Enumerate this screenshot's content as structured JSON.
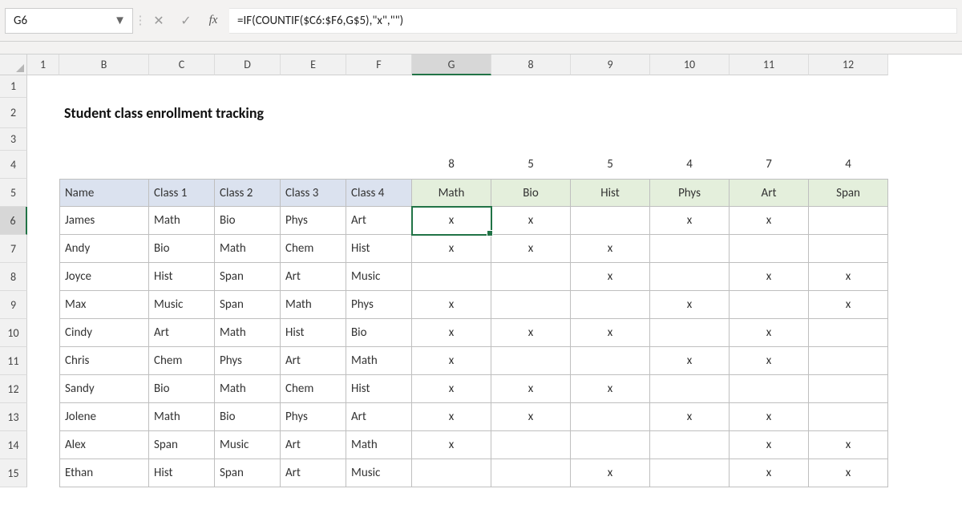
{
  "nameBox": "G6",
  "formula": "=IF(COUNTIF($C6:$F6,G$5),\"x\",\"\")",
  "columnHeaders": [
    "1",
    "B",
    "C",
    "D",
    "E",
    "F",
    "G",
    "8",
    "9",
    "10",
    "11",
    "12"
  ],
  "activeColIndex": 6,
  "rowHeaders": [
    "1",
    "2",
    "3",
    "4",
    "5",
    "6",
    "7",
    "8",
    "9",
    "10",
    "11",
    "12",
    "13",
    "14",
    "15"
  ],
  "activeRowIndex": 5,
  "title": "Student class enrollment tracking",
  "countsRow": [
    "",
    "",
    "",
    "",
    "",
    "8",
    "5",
    "5",
    "4",
    "7",
    "4"
  ],
  "headerRow": [
    "Name",
    "Class 1",
    "Class 2",
    "Class 3",
    "Class 4",
    "Math",
    "Bio",
    "Hist",
    "Phys",
    "Art",
    "Span"
  ],
  "dataRows": [
    [
      "James",
      "Math",
      "Bio",
      "Phys",
      "Art",
      "x",
      "x",
      "",
      "x",
      "x",
      ""
    ],
    [
      "Andy",
      "Bio",
      "Math",
      "Chem",
      "Hist",
      "x",
      "x",
      "x",
      "",
      "",
      ""
    ],
    [
      "Joyce",
      "Hist",
      "Span",
      "Art",
      "Music",
      "",
      "",
      "x",
      "",
      "x",
      "x"
    ],
    [
      "Max",
      "Music",
      "Span",
      "Math",
      "Phys",
      "x",
      "",
      "",
      "x",
      "",
      "x"
    ],
    [
      "Cindy",
      "Art",
      "Math",
      "Hist",
      "Bio",
      "x",
      "x",
      "x",
      "",
      "x",
      ""
    ],
    [
      "Chris",
      "Chem",
      "Phys",
      "Art",
      "Math",
      "x",
      "",
      "",
      "x",
      "x",
      ""
    ],
    [
      "Sandy",
      "Bio",
      "Math",
      "Chem",
      "Hist",
      "x",
      "x",
      "x",
      "",
      "",
      ""
    ],
    [
      "Jolene",
      "Math",
      "Bio",
      "Phys",
      "Art",
      "x",
      "x",
      "",
      "x",
      "x",
      ""
    ],
    [
      "Alex",
      "Span",
      "Music",
      "Art",
      "Math",
      "x",
      "",
      "",
      "",
      "x",
      "x"
    ],
    [
      "Ethan",
      "Hist",
      "Span",
      "Art",
      "Music",
      "",
      "",
      "x",
      "",
      "x",
      "x"
    ]
  ],
  "colors": {
    "headerNameBg": "#dbe2ef",
    "headerSubBg": "#e4efdc",
    "gridBorder": "#bfbfbf",
    "selection": "#217346",
    "sheetHeaderBg": "#f1f1f1"
  }
}
